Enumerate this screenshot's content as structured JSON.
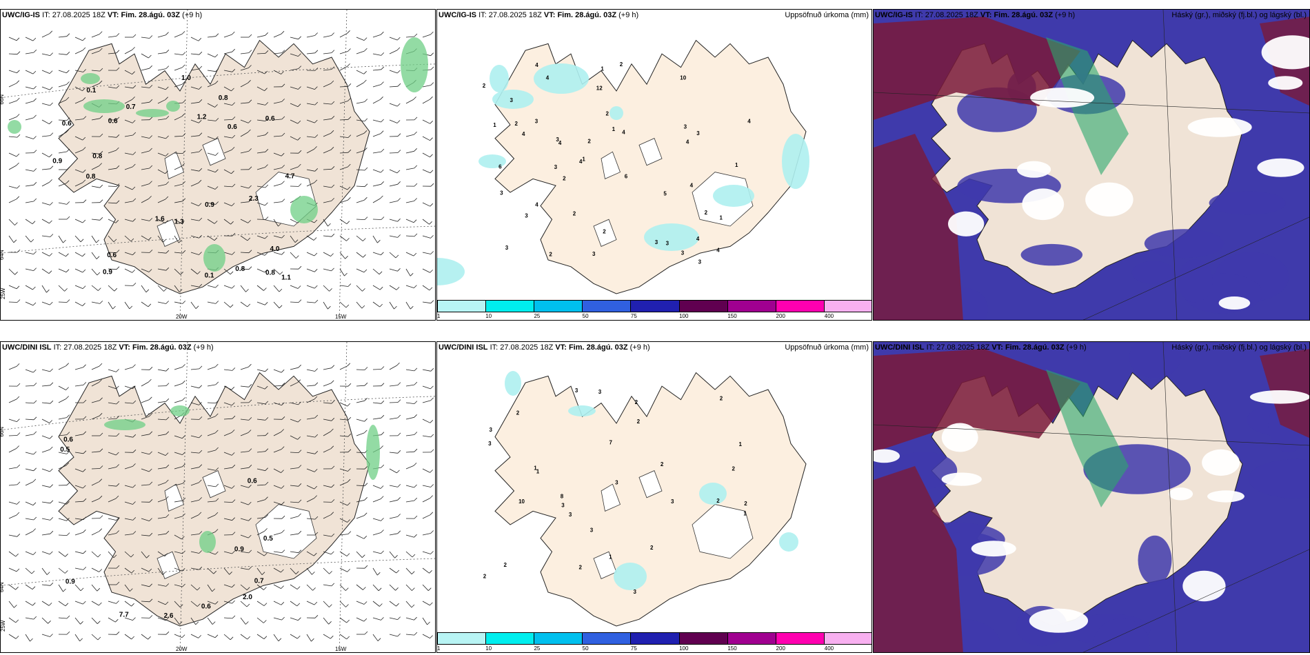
{
  "colors": {
    "land": "#f0e3d6",
    "land_cbar_panel": "#fcefe0",
    "snow": "#ffffff",
    "precip_green": "#6fcf85",
    "precip_dark": "#1f6e3a",
    "high_cloud": "#7a1a3a",
    "mid_cloud": "#2ba86c",
    "low_cloud": "#3f3aab"
  },
  "colorbar": {
    "colors": [
      "#b8f4f4",
      "#00eeee",
      "#00c0ee",
      "#3060e0",
      "#2020b0",
      "#600050",
      "#a00090",
      "#ff00b0",
      "#f8b0f0"
    ],
    "ticks": [
      "1",
      "10",
      "25",
      "50",
      "75",
      "100",
      "150",
      "200",
      "400"
    ]
  },
  "rows": [
    {
      "model": "UWC/IG-IS",
      "it_label": "IT:",
      "it_value": "27.08.2025 18Z",
      "vt_label": "VT:",
      "vt_value": "Fim. 28.ágú. 03Z",
      "lead": "(+9 h)",
      "precip_title": "Uppsöfnuð úrkoma (mm)",
      "cloud_title": "Háský (gr.), miðský (fj.bl.) og lágský (bl.)",
      "wind_labels": [
        "0.9",
        "1.1",
        "0.8",
        "1.0",
        "0.8",
        "0.9",
        "4.7",
        "0.9",
        "0.6",
        "2.3",
        "0.1",
        "0.6",
        "1.6",
        "1.3",
        "4.0",
        "0.1",
        "1.2",
        "0.6",
        "0.7",
        "0.6",
        "0.8",
        "0.6",
        "0.8",
        "0.8"
      ],
      "precip_labels": [
        "3",
        "3",
        "6",
        "6",
        "4",
        "4",
        "3",
        "2",
        "4",
        "4",
        "12",
        "4",
        "10",
        "5",
        "2",
        "1",
        "2",
        "1",
        "4",
        "2",
        "3",
        "2",
        "2",
        "3",
        "2",
        "1",
        "3",
        "4",
        "4",
        "3",
        "3",
        "3",
        "1",
        "1",
        "2",
        "3",
        "3",
        "4",
        "4",
        "3",
        "2",
        "1",
        "4",
        "4",
        "2",
        "3",
        "3"
      ]
    },
    {
      "model": "UWC/DINI ISL",
      "it_label": "IT:",
      "it_value": "27.08.2025 18Z",
      "vt_label": "VT:",
      "vt_value": "Fim. 28.ágú. 03Z",
      "lead": "(+9 h)",
      "precip_title": "Uppsöfnuð úrkoma (mm)",
      "cloud_title": "Háský (gr.), miðský (fj.bl.) og lágský (bl.)",
      "wind_labels": [
        "0.5",
        "0.6",
        "0.9",
        "0.7",
        "2.6",
        "7.7",
        "2.0",
        "0.9",
        "0.5",
        "0.6",
        "0.6"
      ],
      "precip_labels": [
        "3",
        "3",
        "2",
        "7",
        "10",
        "8",
        "1",
        "2",
        "1",
        "2",
        "1",
        "2",
        "1",
        "2",
        "1",
        "2",
        "2",
        "3",
        "3",
        "3",
        "3",
        "2",
        "2",
        "3",
        "3",
        "2",
        "2",
        "3",
        "2",
        "3"
      ]
    }
  ],
  "axis_labels": {
    "lat_66": "66N",
    "lat_64": "64N",
    "lon_20": "20W",
    "lon_15": "15W",
    "lon_25": "25W"
  }
}
